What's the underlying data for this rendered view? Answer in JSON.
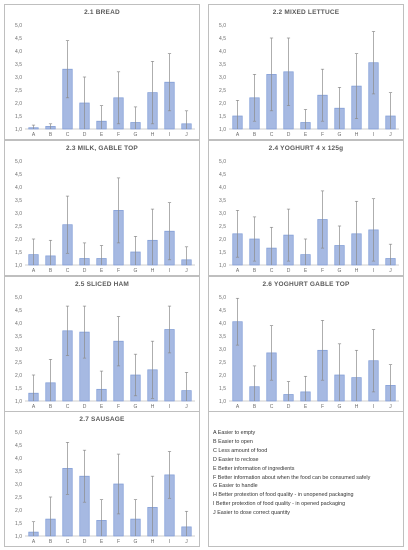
{
  "chart_data": [
    {
      "type": "bar",
      "title": "2.1 BREAD",
      "categories": [
        "A",
        "B",
        "C",
        "D",
        "E",
        "F",
        "G",
        "H",
        "I",
        "J"
      ],
      "values": [
        1.05,
        1.1,
        3.3,
        2.0,
        1.3,
        2.2,
        1.25,
        2.4,
        2.8,
        1.2
      ],
      "errors": [
        0.1,
        0.1,
        1.1,
        1.0,
        0.6,
        1.0,
        0.6,
        1.2,
        1.1,
        0.5
      ],
      "ylim": [
        1.0,
        5.0
      ],
      "yticks": [
        "1,0",
        "1,5",
        "2,0",
        "2,5",
        "3,0",
        "3,5",
        "4,0",
        "4,5",
        "5,0"
      ],
      "xlabel": "",
      "ylabel": "",
      "grid": false
    },
    {
      "type": "bar",
      "title": "2.2 MIXED LETTUCE",
      "categories": [
        "A",
        "B",
        "C",
        "D",
        "E",
        "F",
        "G",
        "H",
        "I",
        "J"
      ],
      "values": [
        1.5,
        2.2,
        3.1,
        3.2,
        1.25,
        2.3,
        1.8,
        2.65,
        3.55,
        1.5
      ],
      "errors": [
        0.6,
        0.9,
        1.4,
        1.3,
        0.5,
        1.0,
        0.8,
        1.25,
        1.2,
        0.9
      ],
      "ylim": [
        1.0,
        5.0
      ],
      "yticks": [
        "1,0",
        "1,5",
        "2,0",
        "2,5",
        "3,0",
        "3,5",
        "4,0",
        "4,5",
        "5,0"
      ],
      "xlabel": "",
      "ylabel": "",
      "grid": false
    },
    {
      "type": "bar",
      "title": "2.3 MILK, GABLE TOP",
      "categories": [
        "A",
        "B",
        "C",
        "D",
        "E",
        "F",
        "G",
        "H",
        "I",
        "J"
      ],
      "values": [
        1.4,
        1.35,
        2.55,
        1.25,
        1.25,
        3.1,
        1.5,
        1.95,
        2.3,
        1.2
      ],
      "errors": [
        0.6,
        0.6,
        1.1,
        0.6,
        0.5,
        1.25,
        0.6,
        1.2,
        1.1,
        0.5
      ],
      "ylim": [
        1.0,
        5.0
      ],
      "yticks": [
        "1,0",
        "1,5",
        "2,0",
        "2,5",
        "3,0",
        "3,5",
        "4,0",
        "4,5",
        "5,0"
      ],
      "xlabel": "",
      "ylabel": "",
      "grid": false
    },
    {
      "type": "bar",
      "title": "2.4 YOGHURT 4 x 125g",
      "categories": [
        "A",
        "B",
        "C",
        "D",
        "E",
        "F",
        "G",
        "H",
        "I",
        "J"
      ],
      "values": [
        2.2,
        2.0,
        1.65,
        2.15,
        1.4,
        2.75,
        1.75,
        2.2,
        2.35,
        1.25
      ],
      "errors": [
        0.9,
        0.85,
        0.8,
        1.0,
        0.6,
        1.1,
        0.75,
        1.25,
        1.2,
        0.55
      ],
      "ylim": [
        1.0,
        5.0
      ],
      "yticks": [
        "1,0",
        "1,5",
        "2,0",
        "2,5",
        "3,0",
        "3,5",
        "4,0",
        "4,5",
        "5,0"
      ],
      "xlabel": "",
      "ylabel": "",
      "grid": false
    },
    {
      "type": "bar",
      "title": "2.5 SLICED HAM",
      "categories": [
        "A",
        "B",
        "C",
        "D",
        "E",
        "F",
        "G",
        "H",
        "I",
        "J"
      ],
      "values": [
        1.3,
        1.7,
        3.7,
        3.65,
        1.45,
        3.3,
        2.0,
        2.2,
        3.75,
        1.4
      ],
      "errors": [
        0.7,
        0.9,
        0.95,
        1.0,
        0.7,
        0.95,
        0.8,
        1.1,
        0.9,
        0.7
      ],
      "ylim": [
        1.0,
        5.0
      ],
      "yticks": [
        "1,0",
        "1,5",
        "2,0",
        "2,5",
        "3,0",
        "3,5",
        "4,0",
        "4,5",
        "5,0"
      ],
      "xlabel": "",
      "ylabel": "",
      "grid": false
    },
    {
      "type": "bar",
      "title": "2.6 YOGHURT GABLE TOP",
      "categories": [
        "A",
        "B",
        "C",
        "D",
        "E",
        "F",
        "G",
        "H",
        "I",
        "J"
      ],
      "values": [
        4.05,
        1.55,
        2.85,
        1.25,
        1.35,
        2.95,
        2.0,
        1.9,
        2.55,
        1.6
      ],
      "errors": [
        0.9,
        0.8,
        1.05,
        0.5,
        0.6,
        1.15,
        1.2,
        1.05,
        1.2,
        0.8
      ],
      "ylim": [
        1.0,
        5.0
      ],
      "yticks": [
        "1,0",
        "1,5",
        "2,0",
        "2,5",
        "3,0",
        "3,5",
        "4,0",
        "4,5",
        "5,0"
      ],
      "xlabel": "",
      "ylabel": "",
      "grid": false
    },
    {
      "type": "bar",
      "title": "2.7 SAUSAGE",
      "categories": [
        "A",
        "B",
        "C",
        "D",
        "E",
        "F",
        "G",
        "H",
        "I",
        "J"
      ],
      "values": [
        1.15,
        1.65,
        3.6,
        3.3,
        1.6,
        3.0,
        1.65,
        2.1,
        3.35,
        1.35
      ],
      "errors": [
        0.4,
        0.85,
        1.0,
        1.0,
        0.8,
        1.15,
        0.75,
        1.2,
        0.9,
        0.6
      ],
      "ylim": [
        1.0,
        5.0
      ],
      "yticks": [
        "1,0",
        "1,5",
        "2,0",
        "2,5",
        "3,0",
        "3,5",
        "4,0",
        "4,5",
        "5,0"
      ],
      "xlabel": "",
      "ylabel": "",
      "grid": false
    }
  ],
  "legend": [
    "A Easier to empty",
    "B Easier to open",
    "C Less amount of food",
    "D Easier to reclose",
    "E Better information of ingredients",
    "F Better information about when the food can be consumed safely",
    "G Easier to handle",
    "H Better protextion of food quality - in unopened packaging",
    "I Better protextion of food quality - in opened packaging",
    "J Easier to dose correct quantity"
  ],
  "colors": {
    "bar_fill": "#a6b9e2",
    "bar_stroke": "#7f9bd5",
    "error_bar": "#8c8c8c",
    "axis": "#bfbfbf",
    "text": "#595959"
  }
}
